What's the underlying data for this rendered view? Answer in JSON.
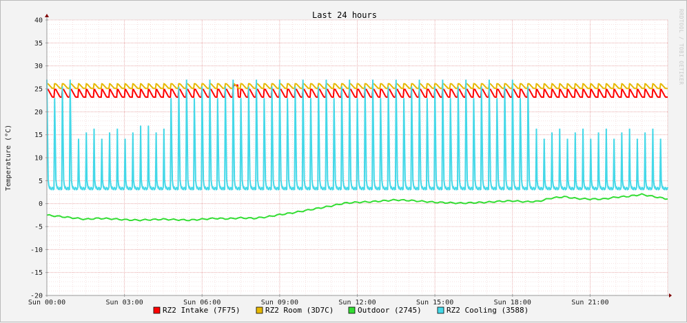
{
  "chart_data": {
    "type": "line",
    "title": "Last 24 hours",
    "ylabel": "Temperature (°C)",
    "watermark": "RRDTOOL / TOBI OETIKER",
    "ylim": [
      -20,
      40
    ],
    "y_ticks": [
      40,
      35,
      30,
      25,
      20,
      15,
      10,
      5,
      0,
      -5,
      -10,
      -15,
      -20
    ],
    "y_tick_labels": [
      "40",
      "35",
      "30",
      "25",
      "20",
      "15",
      "10",
      "5",
      "0",
      "-5",
      "-10",
      "-15",
      "-20"
    ],
    "x_unit": "hours",
    "xlim": [
      0,
      24
    ],
    "x_ticks": [
      0,
      3,
      6,
      9,
      12,
      15,
      18,
      21
    ],
    "x_tick_labels": [
      "Sun 00:00",
      "Sun 03:00",
      "Sun 06:00",
      "Sun 09:00",
      "Sun 12:00",
      "Sun 15:00",
      "Sun 18:00",
      "Sun 21:00"
    ],
    "grid": true,
    "legend_position": "bottom",
    "series": [
      {
        "name": "RZ2 Intake (7F75)",
        "color": "#ff0000",
        "pattern": {
          "baseline": 23.2,
          "peak": 24.9,
          "cycle_hours": 0.3,
          "extra_peaks": [
            [
              7.3,
              25.8
            ]
          ]
        }
      },
      {
        "name": "RZ2 Room (3D7C)",
        "color": "#e6b800",
        "pattern": {
          "baseline": 25.1,
          "peak": 26.1,
          "cycle_hours": 0.3
        }
      },
      {
        "name": "Outdoor (2745)",
        "color": "#33dd33",
        "x": [
          0,
          0.5,
          1,
          1.5,
          2,
          2.5,
          3,
          3.5,
          4,
          4.5,
          5,
          5.5,
          6,
          6.5,
          7,
          7.5,
          8,
          8.5,
          9,
          9.5,
          10,
          10.5,
          11,
          11.5,
          12,
          12.5,
          13,
          13.5,
          14,
          14.5,
          15,
          15.5,
          16,
          16.5,
          17,
          17.5,
          18,
          18.5,
          19,
          19.5,
          20,
          20.5,
          21,
          21.5,
          22,
          22.5,
          23,
          23.5,
          24
        ],
        "values": [
          -2.5,
          -2.8,
          -3.1,
          -3.4,
          -3.2,
          -3.3,
          -3.5,
          -3.6,
          -3.5,
          -3.4,
          -3.5,
          -3.6,
          -3.4,
          -3.2,
          -3.3,
          -3.1,
          -3.2,
          -2.9,
          -2.4,
          -2.0,
          -1.5,
          -1.0,
          -0.5,
          0.1,
          0.3,
          0.4,
          0.6,
          0.8,
          0.7,
          0.5,
          0.3,
          0.2,
          0.1,
          0.2,
          0.3,
          0.5,
          0.6,
          0.4,
          0.5,
          1.2,
          1.5,
          1.1,
          1.0,
          1.0,
          1.4,
          1.6,
          2.0,
          1.5,
          1.0
        ]
      },
      {
        "name": "RZ2 Cooling (3588)",
        "color": "#44d8e8",
        "pattern": {
          "baseline": 3.3,
          "cycle_hours": 0.3,
          "alternating_peaks": [
            27.0,
            23.0,
            25.5
          ],
          "spike_peak": 28.2,
          "spike_at": 3.7
        }
      }
    ]
  }
}
